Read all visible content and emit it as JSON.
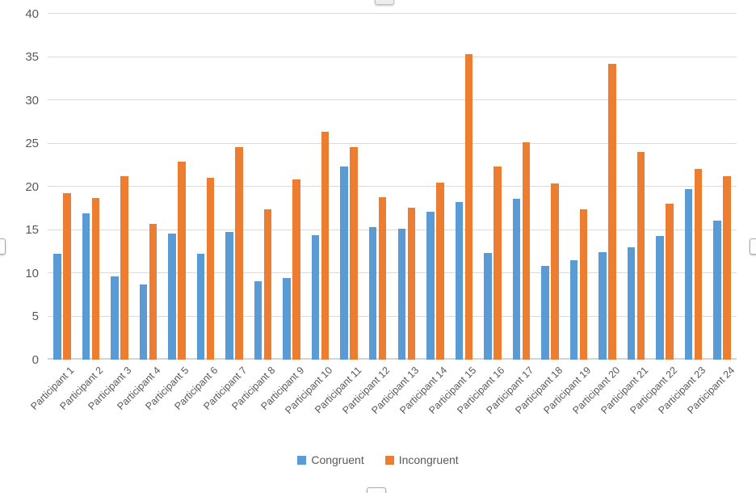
{
  "chart_data": {
    "type": "bar",
    "title": "",
    "xlabel": "",
    "ylabel": "",
    "categories": [
      "Participant 1",
      "Participant 2",
      "Participant 3",
      "Participant 4",
      "Participant 5",
      "Participant 6",
      "Participant 7",
      "Participant 8",
      "Participant 9",
      "Participant 10",
      "Participant 11",
      "Participant 12",
      "Participant 13",
      "Participant 14",
      "Participant 15",
      "Participant 16",
      "Participant 17",
      "Participant 18",
      "Participant 19",
      "Participant 20",
      "Participant 21",
      "Participant 22",
      "Participant 23",
      "Participant 24"
    ],
    "series": [
      {
        "name": "Congruent",
        "color": "#5B9BD5",
        "values": [
          12.2,
          16.9,
          9.6,
          8.7,
          14.6,
          12.2,
          14.8,
          9.1,
          9.4,
          14.4,
          22.3,
          15.3,
          15.1,
          17.1,
          18.2,
          12.3,
          18.6,
          10.8,
          11.5,
          12.4,
          13.0,
          14.3,
          19.7,
          16.1
        ]
      },
      {
        "name": "Incongruent",
        "color": "#ED7D31",
        "values": [
          19.3,
          18.7,
          21.2,
          15.7,
          22.9,
          21.0,
          24.6,
          17.4,
          20.8,
          26.4,
          24.6,
          18.8,
          17.6,
          20.5,
          35.3,
          22.3,
          25.1,
          20.4,
          17.4,
          34.2,
          24.0,
          18.0,
          22.1,
          21.2
        ]
      }
    ],
    "ylim": [
      0,
      40
    ],
    "yticks": [
      0,
      5,
      10,
      15,
      20,
      25,
      30,
      35,
      40
    ],
    "grid": true,
    "legend_position": "bottom"
  },
  "style": {
    "tick_label_color": "#595959",
    "gridline_color": "#DADADA",
    "background": "#FFFFFF"
  }
}
